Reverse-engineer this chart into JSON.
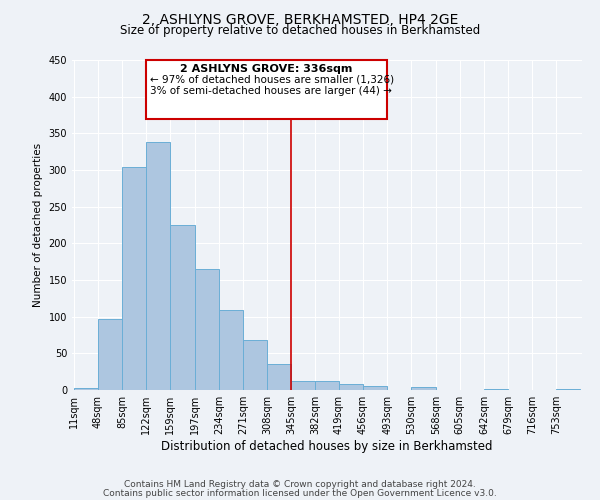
{
  "title": "2, ASHLYNS GROVE, BERKHAMSTED, HP4 2GE",
  "subtitle": "Size of property relative to detached houses in Berkhamsted",
  "xlabel": "Distribution of detached houses by size in Berkhamsted",
  "ylabel": "Number of detached properties",
  "bar_labels": [
    "11sqm",
    "48sqm",
    "85sqm",
    "122sqm",
    "159sqm",
    "197sqm",
    "234sqm",
    "271sqm",
    "308sqm",
    "345sqm",
    "382sqm",
    "419sqm",
    "456sqm",
    "493sqm",
    "530sqm",
    "568sqm",
    "605sqm",
    "642sqm",
    "679sqm",
    "716sqm",
    "753sqm"
  ],
  "bar_values": [
    3,
    97,
    304,
    338,
    225,
    165,
    109,
    68,
    35,
    12,
    12,
    8,
    5,
    0,
    4,
    0,
    0,
    2,
    0,
    0,
    2
  ],
  "bin_edges": [
    11,
    48,
    85,
    122,
    159,
    197,
    234,
    271,
    308,
    345,
    382,
    419,
    456,
    493,
    530,
    568,
    605,
    642,
    679,
    716,
    753,
    790
  ],
  "bar_color": "#adc6e0",
  "bar_edge_color": "#6aaed6",
  "vline_x": 345,
  "vline_color": "#cc0000",
  "ylim": [
    0,
    450
  ],
  "yticks": [
    0,
    50,
    100,
    150,
    200,
    250,
    300,
    350,
    400,
    450
  ],
  "annotation_title": "2 ASHLYNS GROVE: 336sqm",
  "annotation_line1": "← 97% of detached houses are smaller (1,326)",
  "annotation_line2": "3% of semi-detached houses are larger (44) →",
  "annotation_box_color": "#cc0000",
  "footer_line1": "Contains HM Land Registry data © Crown copyright and database right 2024.",
  "footer_line2": "Contains public sector information licensed under the Open Government Licence v3.0.",
  "background_color": "#eef2f7",
  "grid_color": "#ffffff",
  "title_fontsize": 10,
  "subtitle_fontsize": 8.5,
  "xlabel_fontsize": 8.5,
  "ylabel_fontsize": 7.5,
  "tick_fontsize": 7,
  "footer_fontsize": 6.5
}
